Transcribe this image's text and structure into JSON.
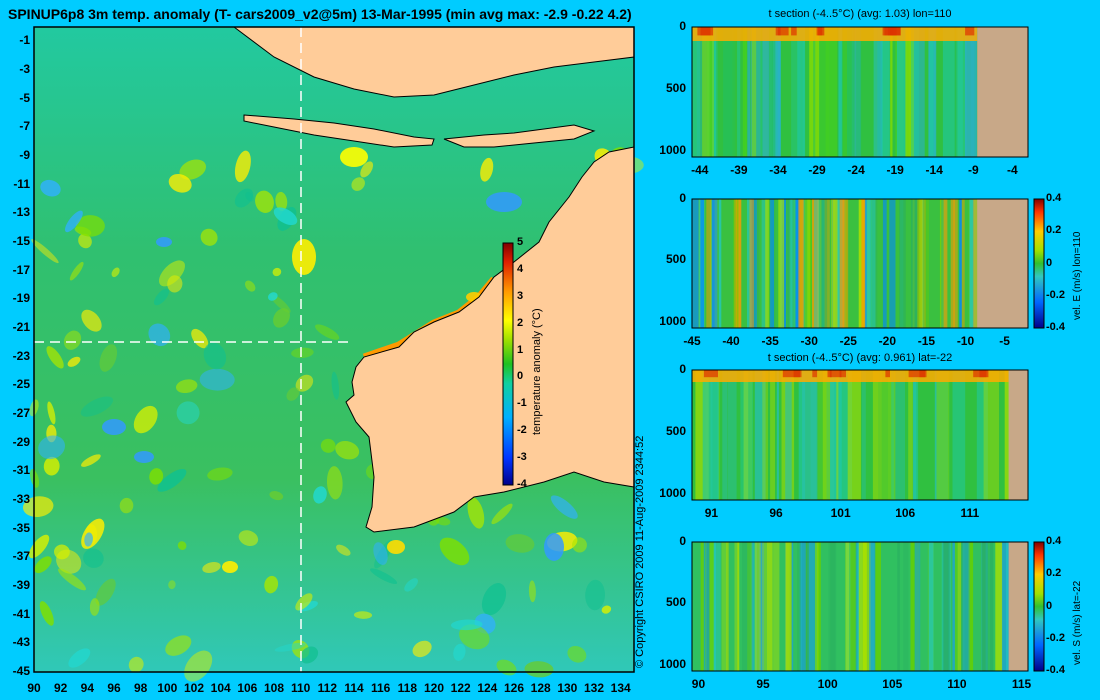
{
  "title": "SPINUP6p8 3m temp. anomaly (T- cars2009_v2@5m) 13-Mar-1995 (min avg max: -2.9 -0.22 4.2)",
  "copyright": "© Copyright CSIRO 2009  11-Aug-2009 2344:52",
  "chart_data": [
    {
      "type": "heatmap",
      "name": "map",
      "title": "SPINUP6p8 3m temp. anomaly (T- cars2009_v2@5m) 13-Mar-1995 (min avg max: -2.9 -0.22 4.2)",
      "x_ticks": [
        "90",
        "92",
        "94",
        "96",
        "98",
        "100",
        "102",
        "104",
        "106",
        "108",
        "110",
        "112",
        "114",
        "116",
        "118",
        "120",
        "122",
        "124",
        "126",
        "128",
        "130",
        "132",
        "134"
      ],
      "y_ticks": [
        "-1",
        "-3",
        "-5",
        "-7",
        "-9",
        "-11",
        "-13",
        "-15",
        "-17",
        "-19",
        "-21",
        "-23",
        "-25",
        "-27",
        "-29",
        "-31",
        "-33",
        "-35",
        "-37",
        "-39",
        "-41",
        "-43",
        "-45"
      ],
      "xlim": [
        90,
        135
      ],
      "ylim": [
        -45,
        0
      ],
      "section_lon": 110,
      "section_lat": -22,
      "colorbar": {
        "label": "temperature anomaly (°C)",
        "range": [
          -4,
          5
        ],
        "ticks": [
          "5",
          "4",
          "3",
          "2",
          "1",
          "0",
          "-1",
          "-2",
          "-3",
          "-4"
        ]
      },
      "summary": {
        "min": -2.9,
        "avg": -0.22,
        "max": 4.2
      }
    },
    {
      "type": "heatmap",
      "name": "panel1",
      "title": "t section (-4..5°C) (avg: 1.03) lon=110",
      "x_ticks": [
        "-44",
        "-39",
        "-34",
        "-29",
        "-24",
        "-19",
        "-14",
        "-9",
        "-4"
      ],
      "xlim": [
        -45,
        -2
      ],
      "y_ticks": [
        "0",
        "500",
        "1000"
      ],
      "ylim": [
        1050,
        0
      ]
    },
    {
      "type": "heatmap",
      "name": "panel2",
      "title": "",
      "x_ticks": [
        "-45",
        "-40",
        "-35",
        "-30",
        "-25",
        "-20",
        "-15",
        "-10",
        "-5"
      ],
      "xlim": [
        -45,
        -2
      ],
      "y_ticks": [
        "0",
        "500",
        "1000"
      ],
      "ylim": [
        1050,
        0
      ],
      "colorbar": {
        "label": "vel. E (m/s) lon=110",
        "range": [
          -0.4,
          0.4
        ],
        "ticks": [
          "0.4",
          "0.2",
          "0",
          "-0.2",
          "-0.4"
        ]
      }
    },
    {
      "type": "heatmap",
      "name": "panel3",
      "title": "t section (-4..5°C) (avg: 0.961) lat=-22",
      "x_ticks": [
        "91",
        "96",
        "101",
        "106",
        "111"
      ],
      "xlim": [
        89.5,
        115.5
      ],
      "y_ticks": [
        "0",
        "500",
        "1000"
      ],
      "ylim": [
        1050,
        0
      ]
    },
    {
      "type": "heatmap",
      "name": "panel4",
      "title": "",
      "x_ticks": [
        "90",
        "95",
        "100",
        "105",
        "110",
        "115"
      ],
      "xlim": [
        89.5,
        115.5
      ],
      "y_ticks": [
        "0",
        "500",
        "1000"
      ],
      "ylim": [
        1050,
        0
      ],
      "colorbar": {
        "label": "vel. S (m/s) lat=-22",
        "range": [
          -0.4,
          0.4
        ],
        "ticks": [
          "0.4",
          "0.2",
          "0",
          "-0.2",
          "-0.4"
        ]
      }
    }
  ]
}
